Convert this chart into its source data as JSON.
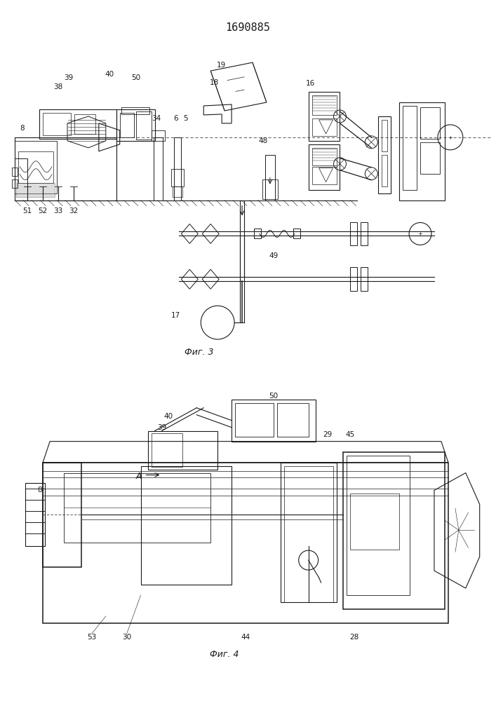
{
  "title": "1690885",
  "bg_color": "#ffffff",
  "fig1_caption": "Фиг. 3",
  "fig2_caption": "Фиг. 4",
  "gray": "#1a1a1a"
}
